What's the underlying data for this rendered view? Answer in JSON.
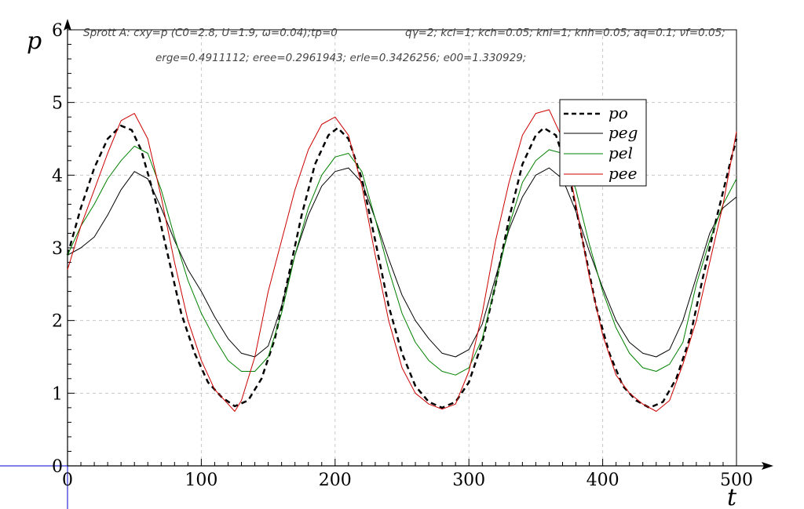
{
  "header": {
    "line1_left": "Sprott A: cxy=p (C0=2.8, U=1.9, ω=0.04);tp=0",
    "line1_right": "qγ=2; kcl=1; kch=0.05; knl=1; knh=0.05; aq=0.1; νf=0.05;",
    "line2": "erge=0.4911112; eree=0.2961943; erle=0.3426256; e00=1.330929;"
  },
  "colors": {
    "p_o": "#000000",
    "p_eg": "#000000",
    "p_el": "#008000",
    "p_ee": "#cc0000",
    "grid": "#c8c8c8",
    "origin_axes": "#0000cc"
  },
  "chart_data": {
    "type": "line",
    "xlabel": "t",
    "ylabel": "p",
    "xlim": [
      0,
      500
    ],
    "ylim": [
      0,
      6
    ],
    "x_ticks": [
      0,
      100,
      200,
      300,
      400,
      500
    ],
    "y_ticks": [
      0,
      1,
      2,
      3,
      4,
      5,
      6
    ],
    "grid": true,
    "legend_position": "top-right",
    "series": [
      {
        "name": "po",
        "style": "dashed",
        "x": [
          0,
          10,
          20,
          30,
          40,
          48,
          55,
          65,
          75,
          85,
          95,
          105,
          115,
          125,
          135,
          145,
          155,
          165,
          175,
          185,
          195,
          202,
          210,
          220,
          230,
          240,
          250,
          260,
          270,
          280,
          290,
          300,
          310,
          320,
          330,
          340,
          350,
          356,
          365,
          375,
          385,
          395,
          405,
          415,
          425,
          435,
          445,
          455,
          465,
          475,
          485,
          495,
          500
        ],
        "y": [
          2.9,
          3.55,
          4.1,
          4.5,
          4.68,
          4.62,
          4.35,
          3.7,
          2.9,
          2.1,
          1.55,
          1.15,
          0.95,
          0.82,
          0.9,
          1.2,
          1.75,
          2.6,
          3.45,
          4.15,
          4.55,
          4.65,
          4.5,
          3.95,
          3.1,
          2.2,
          1.55,
          1.1,
          0.88,
          0.8,
          0.88,
          1.15,
          1.7,
          2.5,
          3.4,
          4.15,
          4.55,
          4.65,
          4.55,
          4.0,
          3.1,
          2.2,
          1.55,
          1.1,
          0.9,
          0.8,
          0.88,
          1.2,
          1.75,
          2.6,
          3.4,
          4.15,
          4.5
        ]
      },
      {
        "name": "peg",
        "style": "solid",
        "x": [
          0,
          10,
          20,
          30,
          40,
          50,
          60,
          70,
          80,
          90,
          100,
          110,
          120,
          130,
          140,
          150,
          160,
          170,
          180,
          190,
          200,
          210,
          220,
          230,
          240,
          250,
          260,
          270,
          280,
          290,
          300,
          310,
          320,
          330,
          340,
          350,
          360,
          370,
          380,
          390,
          400,
          410,
          420,
          430,
          440,
          450,
          460,
          470,
          480,
          490,
          500
        ],
        "y": [
          2.9,
          3.0,
          3.15,
          3.45,
          3.8,
          4.05,
          3.95,
          3.55,
          3.1,
          2.7,
          2.4,
          2.05,
          1.75,
          1.55,
          1.5,
          1.65,
          2.2,
          2.9,
          3.45,
          3.85,
          4.05,
          4.1,
          3.9,
          3.4,
          2.85,
          2.35,
          2.0,
          1.75,
          1.55,
          1.5,
          1.6,
          1.95,
          2.6,
          3.25,
          3.7,
          4.0,
          4.1,
          3.95,
          3.5,
          2.95,
          2.45,
          2.0,
          1.7,
          1.55,
          1.5,
          1.6,
          2.0,
          2.6,
          3.2,
          3.55,
          3.7
        ]
      },
      {
        "name": "pel",
        "style": "solid",
        "x": [
          0,
          10,
          20,
          30,
          40,
          50,
          60,
          70,
          80,
          90,
          100,
          110,
          120,
          130,
          140,
          150,
          160,
          170,
          180,
          190,
          200,
          210,
          220,
          230,
          240,
          250,
          260,
          270,
          280,
          290,
          300,
          310,
          320,
          330,
          340,
          350,
          360,
          370,
          380,
          390,
          400,
          410,
          420,
          430,
          440,
          450,
          460,
          470,
          480,
          490,
          500
        ],
        "y": [
          2.9,
          3.3,
          3.6,
          3.95,
          4.2,
          4.4,
          4.3,
          3.8,
          3.15,
          2.55,
          2.1,
          1.75,
          1.45,
          1.3,
          1.3,
          1.5,
          2.1,
          2.9,
          3.55,
          4.0,
          4.25,
          4.3,
          4.05,
          3.4,
          2.7,
          2.1,
          1.7,
          1.45,
          1.3,
          1.25,
          1.35,
          1.75,
          2.5,
          3.3,
          3.9,
          4.2,
          4.35,
          4.3,
          3.8,
          3.05,
          2.4,
          1.9,
          1.55,
          1.35,
          1.3,
          1.4,
          1.7,
          2.5,
          3.1,
          3.6,
          3.95
        ]
      },
      {
        "name": "pee",
        "style": "solid",
        "x": [
          0,
          10,
          20,
          30,
          40,
          50,
          60,
          70,
          80,
          90,
          100,
          110,
          120,
          125,
          130,
          140,
          150,
          160,
          170,
          180,
          190,
          200,
          210,
          220,
          230,
          240,
          250,
          260,
          270,
          280,
          290,
          300,
          310,
          320,
          330,
          340,
          350,
          360,
          370,
          380,
          390,
          400,
          410,
          420,
          430,
          440,
          450,
          460,
          470,
          480,
          490,
          500
        ],
        "y": [
          2.7,
          3.3,
          3.8,
          4.3,
          4.75,
          4.85,
          4.5,
          3.7,
          2.8,
          2.0,
          1.45,
          1.05,
          0.85,
          0.75,
          0.9,
          1.5,
          2.4,
          3.1,
          3.8,
          4.35,
          4.7,
          4.8,
          4.55,
          3.85,
          2.9,
          2.0,
          1.35,
          1.0,
          0.85,
          0.78,
          0.85,
          1.3,
          2.1,
          3.1,
          3.9,
          4.55,
          4.85,
          4.9,
          4.5,
          3.6,
          2.6,
          1.8,
          1.25,
          1.0,
          0.85,
          0.75,
          0.9,
          1.4,
          2.0,
          2.8,
          3.6,
          4.6
        ]
      }
    ]
  }
}
